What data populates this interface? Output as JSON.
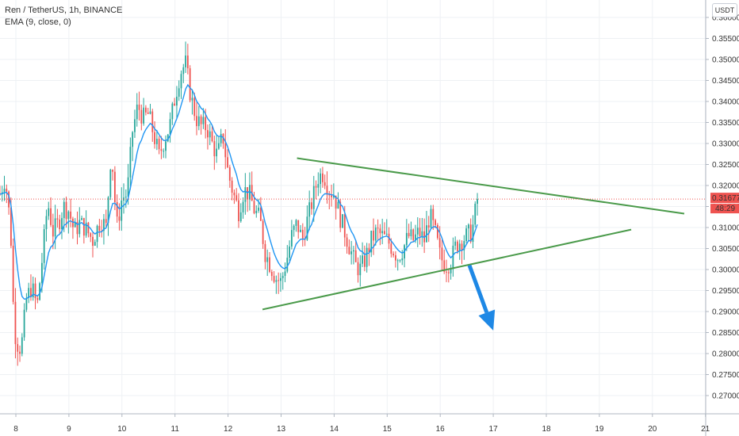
{
  "legend": {
    "symbol": "Ren / TetherUS, 1h, BINANCE",
    "indicator": "EMA (9, close, 0)"
  },
  "currency_button": "USDT",
  "colors": {
    "up": "#26a69a",
    "down": "#ef5350",
    "ema": "#2196f3",
    "trendline": "#4a9a4a",
    "arrow": "#1e88e5",
    "price_line": "#ef5350",
    "grid": "#eef1f4"
  },
  "chart_data": {
    "type": "candlestick",
    "title": "Ren / TetherUS, 1h, BINANCE",
    "x_tick_labels": [
      "8",
      "9",
      "10",
      "11",
      "12",
      "13",
      "14",
      "15",
      "16",
      "17",
      "18",
      "19",
      "20",
      "21"
    ],
    "y_tick_labels": [
      "0.36000",
      "0.35500",
      "0.35000",
      "0.34500",
      "0.34000",
      "0.33500",
      "0.33000",
      "0.32500",
      "0.32000",
      "0.31500",
      "0.31000",
      "0.30500",
      "0.30000",
      "0.29500",
      "0.29000",
      "0.28500",
      "0.28000",
      "0.27500",
      "0.27000"
    ],
    "y_range": [
      0.267,
      0.363
    ],
    "x_range_days": [
      7.7,
      21.0
    ],
    "last_price": 0.31677,
    "last_price_label": "0.31677",
    "countdown_label": "48:29",
    "close_path": [
      [
        7.7,
        0.318
      ],
      [
        7.8,
        0.322
      ],
      [
        7.9,
        0.31
      ],
      [
        7.95,
        0.292
      ],
      [
        8.0,
        0.283
      ],
      [
        8.1,
        0.281
      ],
      [
        8.2,
        0.293
      ],
      [
        8.3,
        0.296
      ],
      [
        8.4,
        0.291
      ],
      [
        8.5,
        0.303
      ],
      [
        8.6,
        0.316
      ],
      [
        8.7,
        0.309
      ],
      [
        8.8,
        0.311
      ],
      [
        8.9,
        0.315
      ],
      [
        9.0,
        0.314
      ],
      [
        9.1,
        0.309
      ],
      [
        9.2,
        0.311
      ],
      [
        9.3,
        0.31
      ],
      [
        9.45,
        0.307
      ],
      [
        9.6,
        0.312
      ],
      [
        9.7,
        0.31
      ],
      [
        9.8,
        0.329
      ],
      [
        9.9,
        0.31
      ],
      [
        10.0,
        0.317
      ],
      [
        10.1,
        0.318
      ],
      [
        10.2,
        0.333
      ],
      [
        10.3,
        0.339
      ],
      [
        10.4,
        0.336
      ],
      [
        10.5,
        0.337
      ],
      [
        10.6,
        0.332
      ],
      [
        10.7,
        0.327
      ],
      [
        10.8,
        0.331
      ],
      [
        10.9,
        0.334
      ],
      [
        11.0,
        0.341
      ],
      [
        11.1,
        0.347
      ],
      [
        11.2,
        0.349
      ],
      [
        11.3,
        0.341
      ],
      [
        11.4,
        0.336
      ],
      [
        11.5,
        0.334
      ],
      [
        11.6,
        0.334
      ],
      [
        11.7,
        0.33
      ],
      [
        11.8,
        0.327
      ],
      [
        11.9,
        0.332
      ],
      [
        12.0,
        0.323
      ],
      [
        12.1,
        0.318
      ],
      [
        12.2,
        0.314
      ],
      [
        12.3,
        0.319
      ],
      [
        12.4,
        0.318
      ],
      [
        12.5,
        0.314
      ],
      [
        12.6,
        0.312
      ],
      [
        12.7,
        0.304
      ],
      [
        12.8,
        0.301
      ],
      [
        12.9,
        0.298
      ],
      [
        13.0,
        0.297
      ],
      [
        13.1,
        0.302
      ],
      [
        13.2,
        0.308
      ],
      [
        13.3,
        0.311
      ],
      [
        13.4,
        0.307
      ],
      [
        13.5,
        0.312
      ],
      [
        13.6,
        0.317
      ],
      [
        13.7,
        0.322
      ],
      [
        13.8,
        0.323
      ],
      [
        13.9,
        0.319
      ],
      [
        14.0,
        0.318
      ],
      [
        14.1,
        0.313
      ],
      [
        14.2,
        0.309
      ],
      [
        14.3,
        0.305
      ],
      [
        14.4,
        0.301
      ],
      [
        14.5,
        0.3
      ],
      [
        14.6,
        0.303
      ],
      [
        14.7,
        0.307
      ],
      [
        14.8,
        0.309
      ],
      [
        14.9,
        0.308
      ],
      [
        15.0,
        0.307
      ],
      [
        15.1,
        0.305
      ],
      [
        15.2,
        0.303
      ],
      [
        15.3,
        0.305
      ],
      [
        15.4,
        0.308
      ],
      [
        15.5,
        0.307
      ],
      [
        15.6,
        0.309
      ],
      [
        15.7,
        0.307
      ],
      [
        15.8,
        0.313
      ],
      [
        15.9,
        0.309
      ],
      [
        16.0,
        0.303
      ],
      [
        16.1,
        0.301
      ],
      [
        16.2,
        0.302
      ],
      [
        16.3,
        0.306
      ],
      [
        16.4,
        0.307
      ],
      [
        16.5,
        0.308
      ],
      [
        16.6,
        0.309
      ],
      [
        16.7,
        0.3168
      ]
    ],
    "annotations": [
      {
        "type": "trendline",
        "name": "upper-trendline",
        "from": [
          13.3,
          0.3265
        ],
        "to": [
          20.6,
          0.3133
        ]
      },
      {
        "type": "trendline",
        "name": "lower-trendline",
        "from": [
          12.65,
          0.2905
        ],
        "to": [
          19.6,
          0.3095
        ]
      },
      {
        "type": "arrow",
        "name": "downside-arrow",
        "from": [
          16.55,
          0.301
        ],
        "to": [
          17.0,
          0.2855
        ]
      }
    ]
  }
}
